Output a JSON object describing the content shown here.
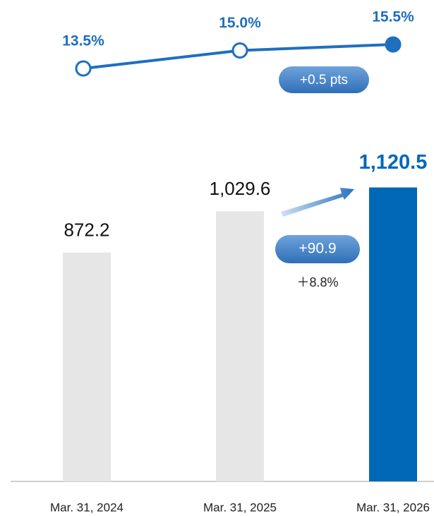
{
  "chart_data": {
    "type": "combo",
    "categories": [
      "Mar. 31, 2024",
      "Mar. 31, 2025",
      "Mar. 31, 2026"
    ],
    "series": [
      {
        "type": "bar",
        "values": [
          872.2,
          1029.6,
          1120.5
        ],
        "value_labels": [
          "872.2",
          "1,029.6",
          "1,120.5"
        ],
        "colors": [
          "#e6e6e6",
          "#e6e6e6",
          "#0068b7"
        ]
      },
      {
        "type": "line",
        "axis": "y2",
        "values": [
          13.5,
          15.0,
          15.5
        ],
        "value_labels": [
          "13.5%",
          "15.0%",
          "15.5%"
        ],
        "color": "#1f6fbf",
        "marker_colors": [
          "#ffffff",
          "#ffffff",
          "#1f6fbf"
        ]
      }
    ],
    "ylim": [
      0,
      1200
    ],
    "y2lim": [
      10,
      17
    ],
    "annotations": [
      "+0.5 pts",
      "+90.9",
      "＋8.8%"
    ]
  }
}
